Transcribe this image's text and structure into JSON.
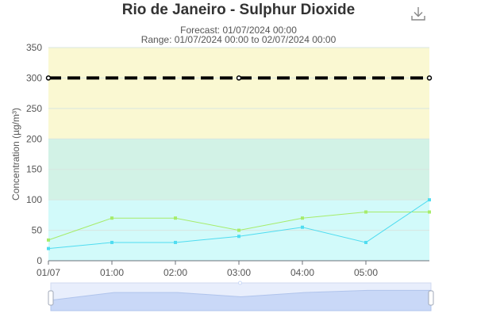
{
  "header": {
    "title": "Rio de Janeiro - Sulphur Dioxide",
    "forecast": "Forecast: 01/07/2024 00:00",
    "range": "Range: 01/07/2024 00:00 to 02/07/2024 00:00",
    "download_icon": "download-icon"
  },
  "chart_data": {
    "type": "line",
    "title": "Rio de Janeiro - Sulphur Dioxide",
    "ylabel": "Concentration (µg/m³)",
    "xlabel": "",
    "ylim": [
      0,
      350
    ],
    "yticks": [
      0,
      50,
      100,
      150,
      200,
      250,
      300,
      350
    ],
    "x": [
      0,
      1,
      2,
      3,
      4,
      5,
      6
    ],
    "xlim": [
      0,
      6
    ],
    "xtick_labels": [
      "01/07",
      "01:00",
      "02:00",
      "03:00",
      "04:00",
      "05:00"
    ],
    "bands": [
      {
        "from": 0,
        "to": 100,
        "color": "#d2fafa"
      },
      {
        "from": 100,
        "to": 200,
        "color": "#d2f2e6"
      },
      {
        "from": 200,
        "to": 350,
        "color": "#faf8d2"
      }
    ],
    "threshold": {
      "value": 300,
      "color": "#000000"
    },
    "series": [
      {
        "values": [
          34,
          70,
          70,
          50,
          70,
          80,
          80
        ],
        "color": "#a6ec6a"
      },
      {
        "values": [
          20,
          30,
          30,
          40,
          55,
          30,
          100
        ],
        "color": "#4fdcf0"
      }
    ],
    "grid": true,
    "zoom_slider": true
  }
}
